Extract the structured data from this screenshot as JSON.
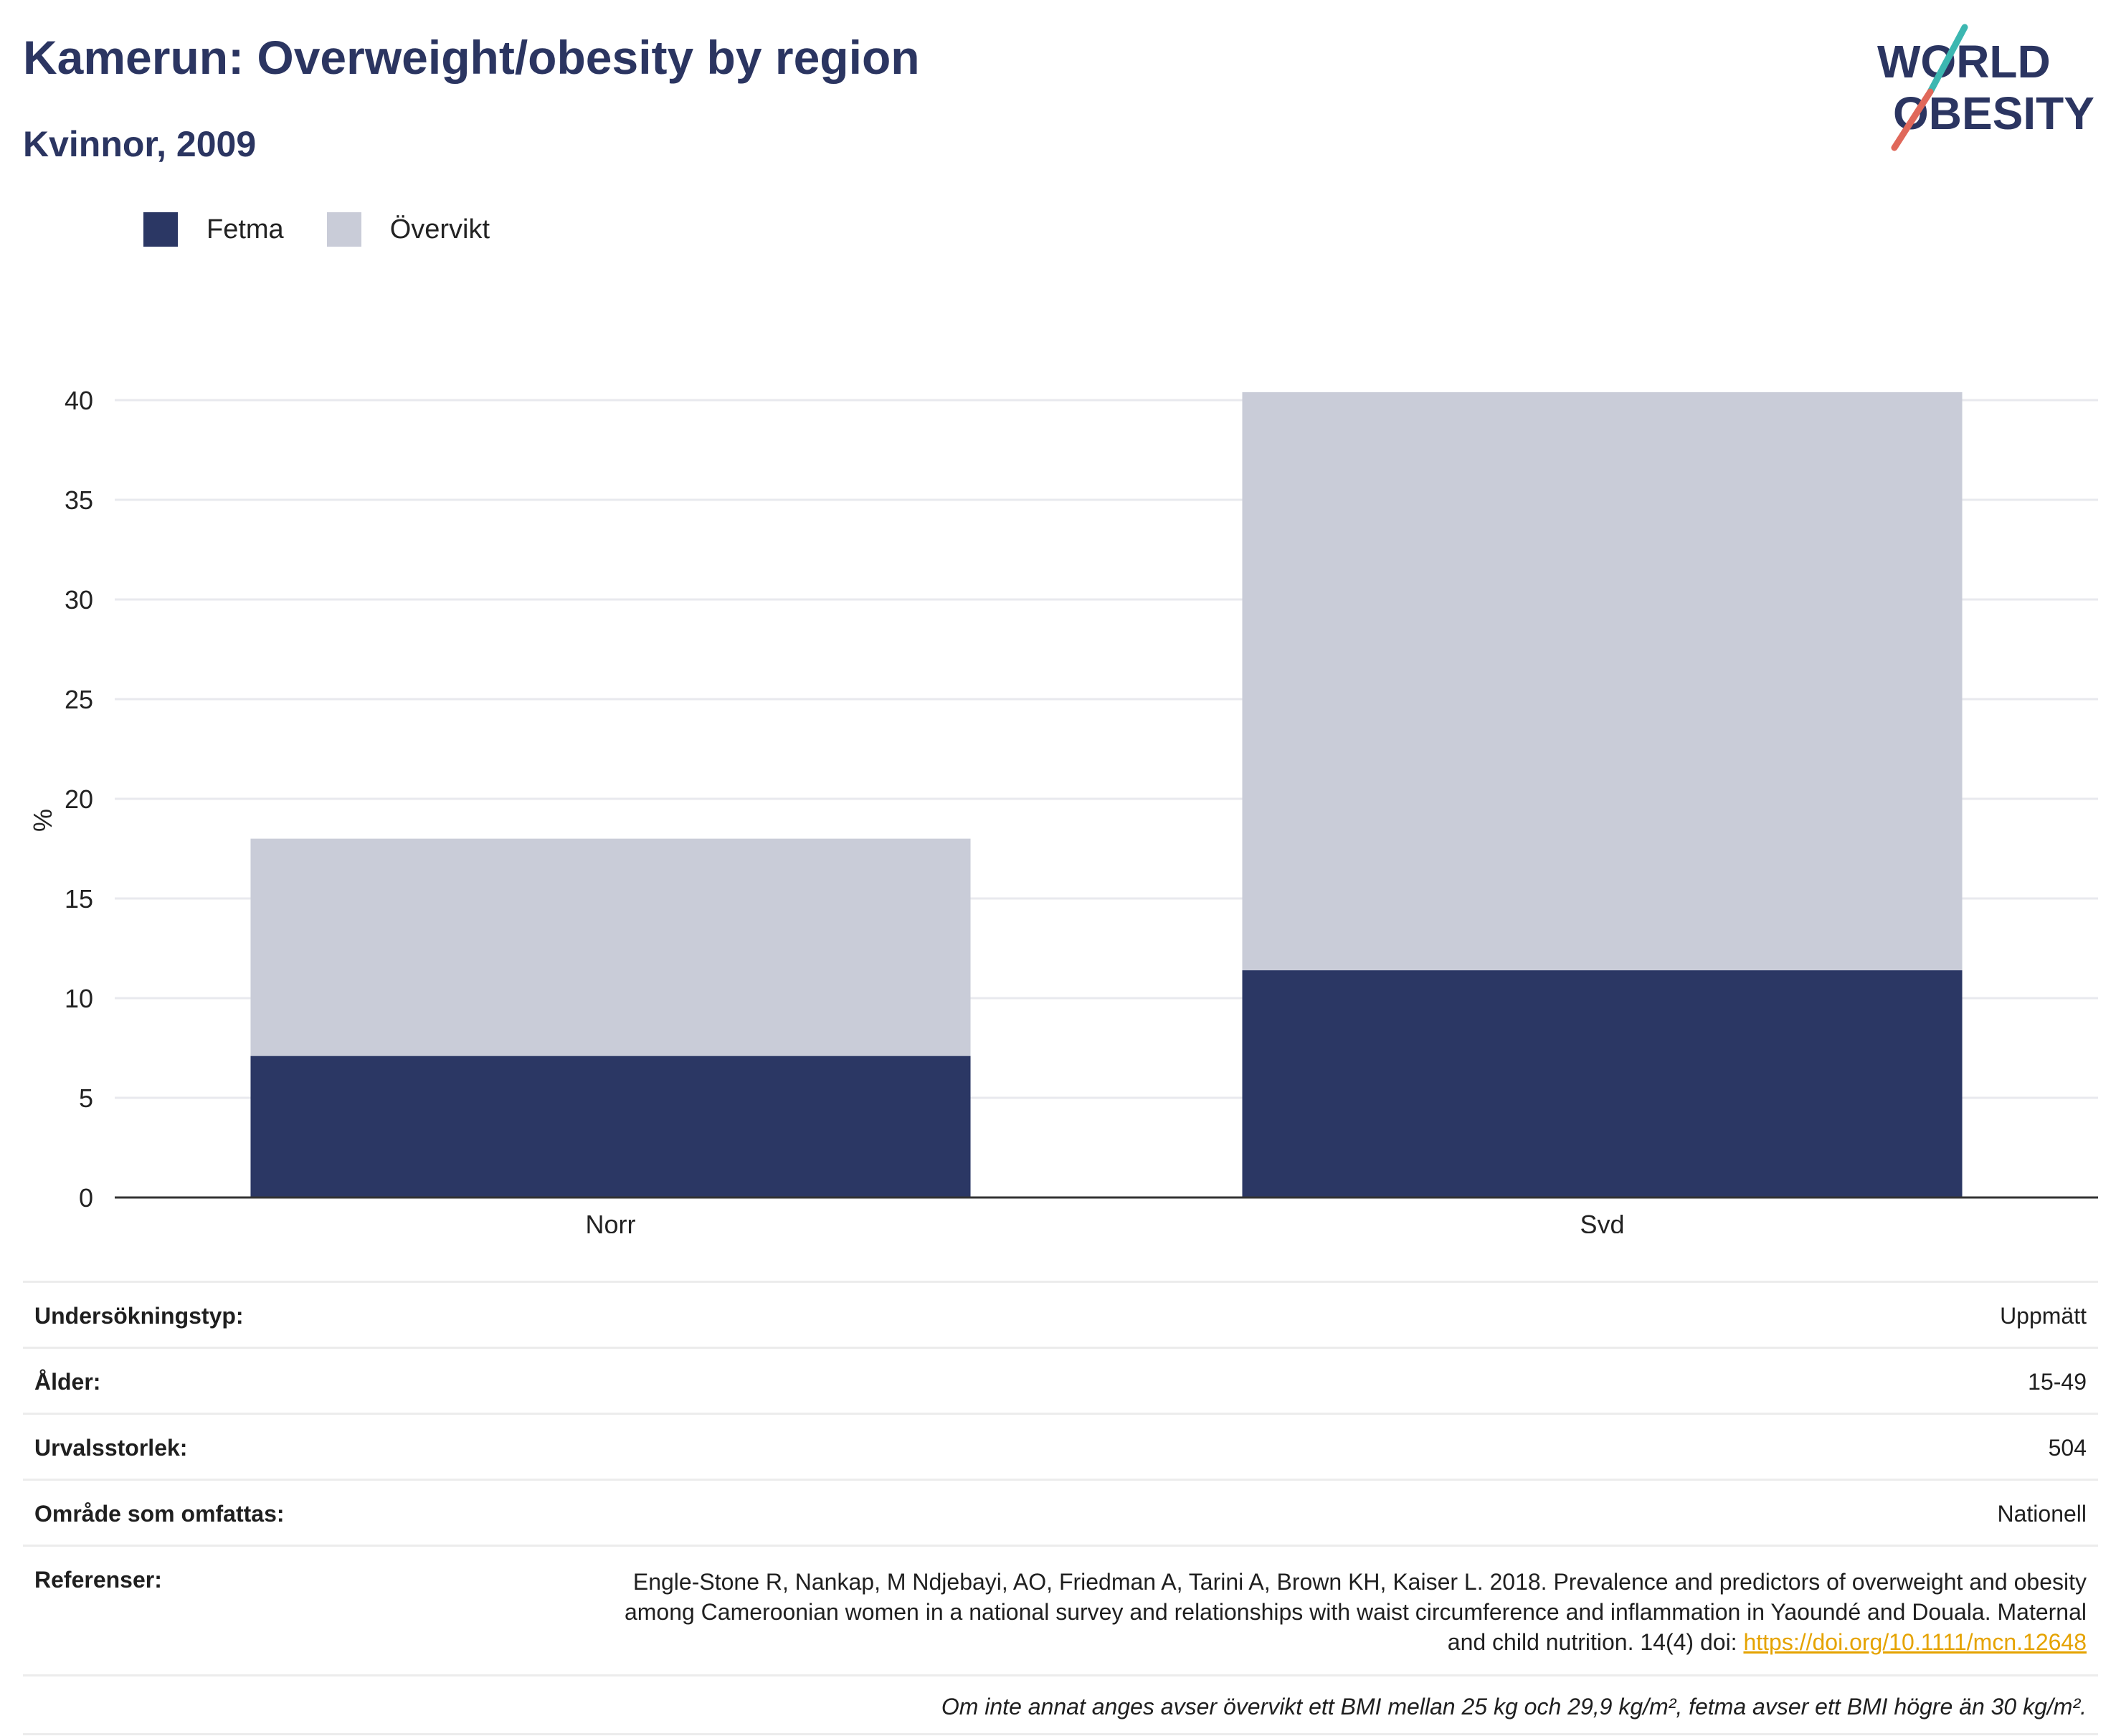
{
  "header": {
    "title": "Kamerun: Overweight/obesity by region",
    "subtitle": "Kvinnor, 2009"
  },
  "logo": {
    "line1": "WORLD",
    "line2": "OBESITY"
  },
  "colors": {
    "obesity": "#2b3764",
    "overweight": "#c9ccd8",
    "title": "#2b3561",
    "link": "#e5a300"
  },
  "legend": [
    {
      "label": "Fetma",
      "color": "#2b3764"
    },
    {
      "label": "Övervikt",
      "color": "#c9ccd8"
    }
  ],
  "chart_data": {
    "type": "bar",
    "stacked": true,
    "categories": [
      "Norr",
      "Syd"
    ],
    "series": [
      {
        "name": "Fetma",
        "values": [
          7.1,
          11.4
        ]
      },
      {
        "name": "Övervikt",
        "values": [
          10.9,
          29.0
        ]
      }
    ],
    "ylabel": "%",
    "ylim": [
      0,
      40
    ],
    "yticks": [
      0,
      5,
      10,
      15,
      20,
      25,
      30,
      35,
      40
    ],
    "grid": true,
    "legend_position": "top-left"
  },
  "info": {
    "survey_type_label": "Undersökningstyp:",
    "survey_type_value": "Uppmätt",
    "age_label": "Ålder:",
    "age_value": "15-49",
    "sample_size_label": "Urvalsstorlek:",
    "sample_size_value": "504",
    "area_label": "Område som omfattas:",
    "area_value": "Nationell",
    "references_label": "Referenser:",
    "references_text": "Engle-Stone R, Nankap, M Ndjebayi, AO, Friedman A, Tarini A, Brown KH, Kaiser L. 2018. Prevalence and predictors of overweight and obesity among Cameroonian women in a national survey and relationships with waist circumference and inflammation in Yaoundé and Douala. Maternal and child nutrition. 14(4) doi: ",
    "references_link": "https://doi.org/10.1111/mcn.12648",
    "footnote": "Om inte annat anges avser övervikt ett BMI mellan 25 kg och 29,9 kg/m², fetma avser ett BMI högre än 30 kg/m²."
  }
}
